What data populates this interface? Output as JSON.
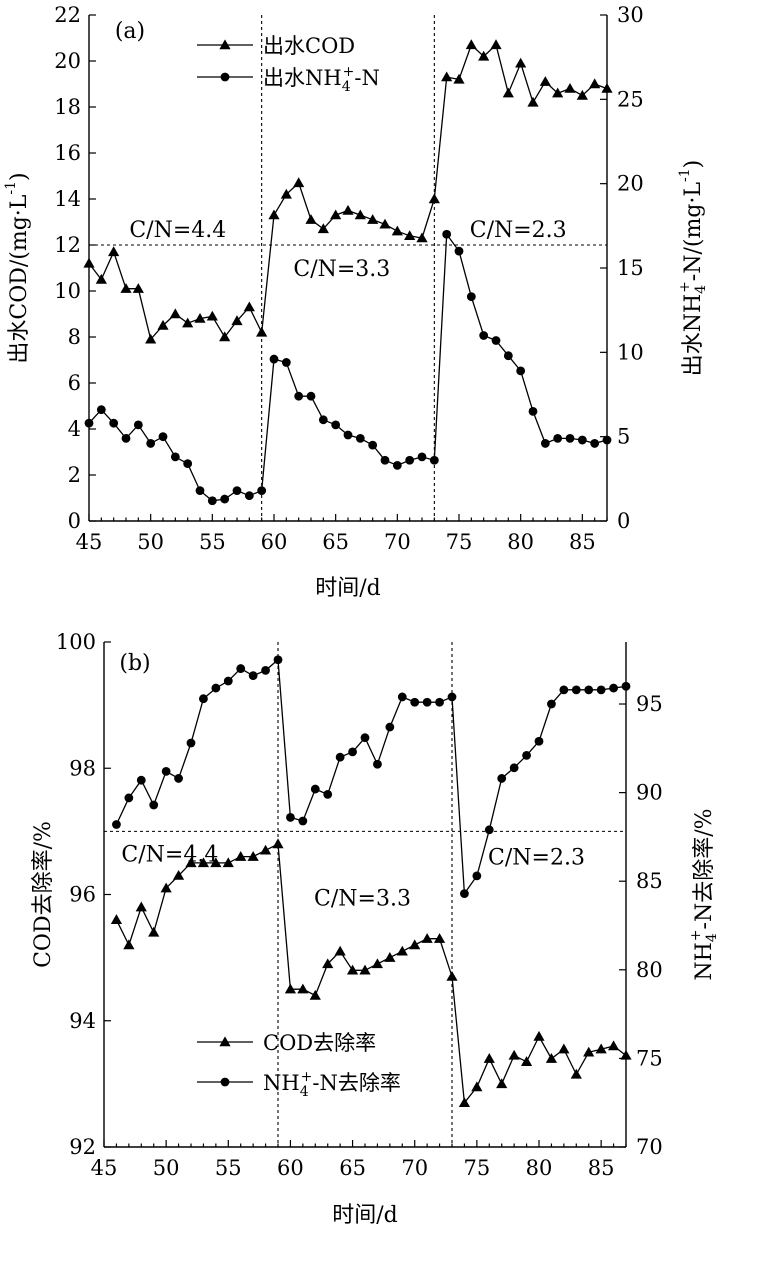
{
  "chart_data": [
    {
      "type": "line",
      "panel_label": "(a)",
      "xlabel": "时间/d",
      "ylabel_left": "出水COD/(mg·L",
      "ylabel_left_sup": "-1",
      "ylabel_left_tail": ")",
      "ylabel_right": "出水NH",
      "ylabel_right_sub": "4",
      "ylabel_right_sup": "+",
      "ylabel_right_tail": "-N/(mg·L",
      "ylabel_right_sup2": "-1",
      "ylabel_right_tail2": ")",
      "xlim": [
        45,
        87
      ],
      "xticks": [
        45,
        50,
        55,
        60,
        65,
        70,
        75,
        80,
        85
      ],
      "ylim_left": [
        0,
        22
      ],
      "yticks_left": [
        0,
        2,
        4,
        6,
        8,
        10,
        12,
        14,
        16,
        18,
        20,
        22
      ],
      "ylim_right": [
        0,
        30
      ],
      "yticks_right": [
        0,
        5,
        10,
        15,
        20,
        25,
        30
      ],
      "phase_boundaries": [
        59,
        73
      ],
      "reference_line": {
        "axis": "left",
        "value": 12.0
      },
      "annotations": [
        {
          "text": "C/N=4.4",
          "x": 52.2,
          "y": 12.7
        },
        {
          "text": "C/N=3.3",
          "x": 65.5,
          "y": 11.0
        },
        {
          "text": "C/N=2.3",
          "x": 79.8,
          "y": 12.7
        }
      ],
      "legend_position": "top",
      "series": [
        {
          "name": "出水COD",
          "name_parts": [
            "出水COD",
            "",
            "",
            ""
          ],
          "axis": "left",
          "marker": "triangle",
          "x": [
            45,
            46,
            47,
            48,
            49,
            50,
            51,
            52,
            53,
            54,
            55,
            56,
            57,
            58,
            59,
            60,
            61,
            62,
            63,
            64,
            65,
            66,
            67,
            68,
            69,
            70,
            71,
            72,
            73,
            74,
            75,
            76,
            77,
            78,
            79,
            80,
            81,
            82,
            83,
            84,
            85,
            86,
            87
          ],
          "y": [
            11.2,
            10.5,
            11.7,
            10.1,
            10.1,
            7.9,
            8.5,
            9.0,
            8.6,
            8.8,
            8.9,
            8.0,
            8.7,
            9.3,
            8.2,
            13.3,
            14.2,
            14.7,
            13.1,
            12.7,
            13.3,
            13.5,
            13.3,
            13.1,
            12.9,
            12.6,
            12.4,
            12.3,
            14.0,
            19.3,
            19.2,
            20.7,
            20.2,
            20.7,
            18.6,
            19.9,
            18.2,
            19.1,
            18.6,
            18.8,
            18.5,
            19.0,
            18.8
          ]
        },
        {
          "name": "出水NH4+-N",
          "name_parts": [
            "出水NH",
            "4",
            "+",
            "-N"
          ],
          "axis": "right",
          "marker": "circle",
          "x": [
            45,
            46,
            47,
            48,
            49,
            50,
            51,
            52,
            53,
            54,
            55,
            56,
            57,
            58,
            59,
            60,
            61,
            62,
            63,
            64,
            65,
            66,
            67,
            68,
            69,
            70,
            71,
            72,
            73,
            74,
            75,
            76,
            77,
            78,
            79,
            80,
            81,
            82,
            83,
            84,
            85,
            86,
            87
          ],
          "y": [
            5.8,
            6.6,
            5.8,
            4.9,
            5.7,
            4.6,
            5.0,
            3.8,
            3.4,
            1.8,
            1.2,
            1.3,
            1.8,
            1.5,
            1.8,
            9.6,
            9.4,
            7.4,
            7.4,
            6.0,
            5.7,
            5.1,
            4.9,
            4.5,
            3.6,
            3.3,
            3.6,
            3.8,
            3.6,
            17.0,
            16.0,
            13.3,
            11.0,
            10.7,
            9.8,
            8.9,
            6.5,
            4.6,
            4.9,
            4.9,
            4.8,
            4.6,
            4.8
          ]
        }
      ]
    },
    {
      "type": "line",
      "panel_label": "(b)",
      "xlabel": "时间/d",
      "ylabel_left": "COD去除率/%",
      "ylabel_right": "NH",
      "ylabel_right_sub": "4",
      "ylabel_right_sup": "+",
      "ylabel_right_tail": "-N去除率/%",
      "xlim": [
        45,
        87
      ],
      "xticks": [
        45,
        50,
        55,
        60,
        65,
        70,
        75,
        80,
        85
      ],
      "ylim_left": [
        92,
        100
      ],
      "yticks_left": [
        92,
        94,
        96,
        98,
        100
      ],
      "ylim_right": [
        70,
        98.5
      ],
      "yticks_right": [
        70,
        75,
        80,
        85,
        90,
        95
      ],
      "phase_boundaries": [
        59,
        73
      ],
      "reference_line": {
        "axis": "left",
        "value": 97.0
      },
      "annotations": [
        {
          "text": "C/N=4.4",
          "x": 50.3,
          "y": 96.65
        },
        {
          "text": "C/N=3.3",
          "x": 65.8,
          "y": 95.95
        },
        {
          "text": "C/N=2.3",
          "x": 79.8,
          "y": 96.6
        }
      ],
      "legend_position": "bottom-center",
      "series": [
        {
          "name": "COD去除率",
          "name_parts": [
            "COD去除率",
            "",
            "",
            ""
          ],
          "axis": "left",
          "marker": "triangle",
          "x": [
            46,
            47,
            48,
            49,
            50,
            51,
            52,
            53,
            54,
            55,
            56,
            57,
            58,
            59,
            60,
            61,
            62,
            63,
            64,
            65,
            66,
            67,
            68,
            69,
            70,
            71,
            72,
            73,
            74,
            75,
            76,
            77,
            78,
            79,
            80,
            81,
            82,
            83,
            84,
            85,
            86,
            87
          ],
          "y": [
            95.6,
            95.2,
            95.8,
            95.4,
            96.1,
            96.3,
            96.5,
            96.5,
            96.5,
            96.5,
            96.6,
            96.6,
            96.7,
            96.8,
            94.5,
            94.5,
            94.4,
            94.9,
            95.1,
            94.8,
            94.8,
            94.9,
            95.0,
            95.1,
            95.2,
            95.3,
            95.3,
            94.7,
            92.7,
            92.95,
            93.4,
            93.0,
            93.45,
            93.35,
            93.75,
            93.4,
            93.55,
            93.15,
            93.5,
            93.55,
            93.6,
            93.45
          ]
        },
        {
          "name": "NH4+-N去除率",
          "name_parts": [
            "NH",
            "4",
            "+",
            "-N去除率"
          ],
          "axis": "right",
          "marker": "circle",
          "x": [
            46,
            47,
            48,
            49,
            50,
            51,
            52,
            53,
            54,
            55,
            56,
            57,
            58,
            59,
            60,
            61,
            62,
            63,
            64,
            65,
            66,
            67,
            68,
            69,
            70,
            71,
            72,
            73,
            74,
            75,
            76,
            77,
            78,
            79,
            80,
            81,
            82,
            83,
            84,
            85,
            86,
            87
          ],
          "y": [
            88.2,
            89.7,
            90.7,
            89.3,
            91.2,
            90.8,
            92.8,
            95.3,
            95.9,
            96.3,
            97.0,
            96.6,
            96.9,
            97.5,
            88.6,
            88.4,
            90.2,
            89.9,
            92.0,
            92.3,
            93.1,
            91.6,
            93.7,
            95.4,
            95.1,
            95.1,
            95.1,
            95.4,
            84.3,
            85.3,
            87.9,
            90.8,
            91.4,
            92.1,
            92.9,
            95.0,
            95.8,
            95.8,
            95.8,
            95.8,
            95.9,
            96.0
          ]
        }
      ]
    }
  ]
}
